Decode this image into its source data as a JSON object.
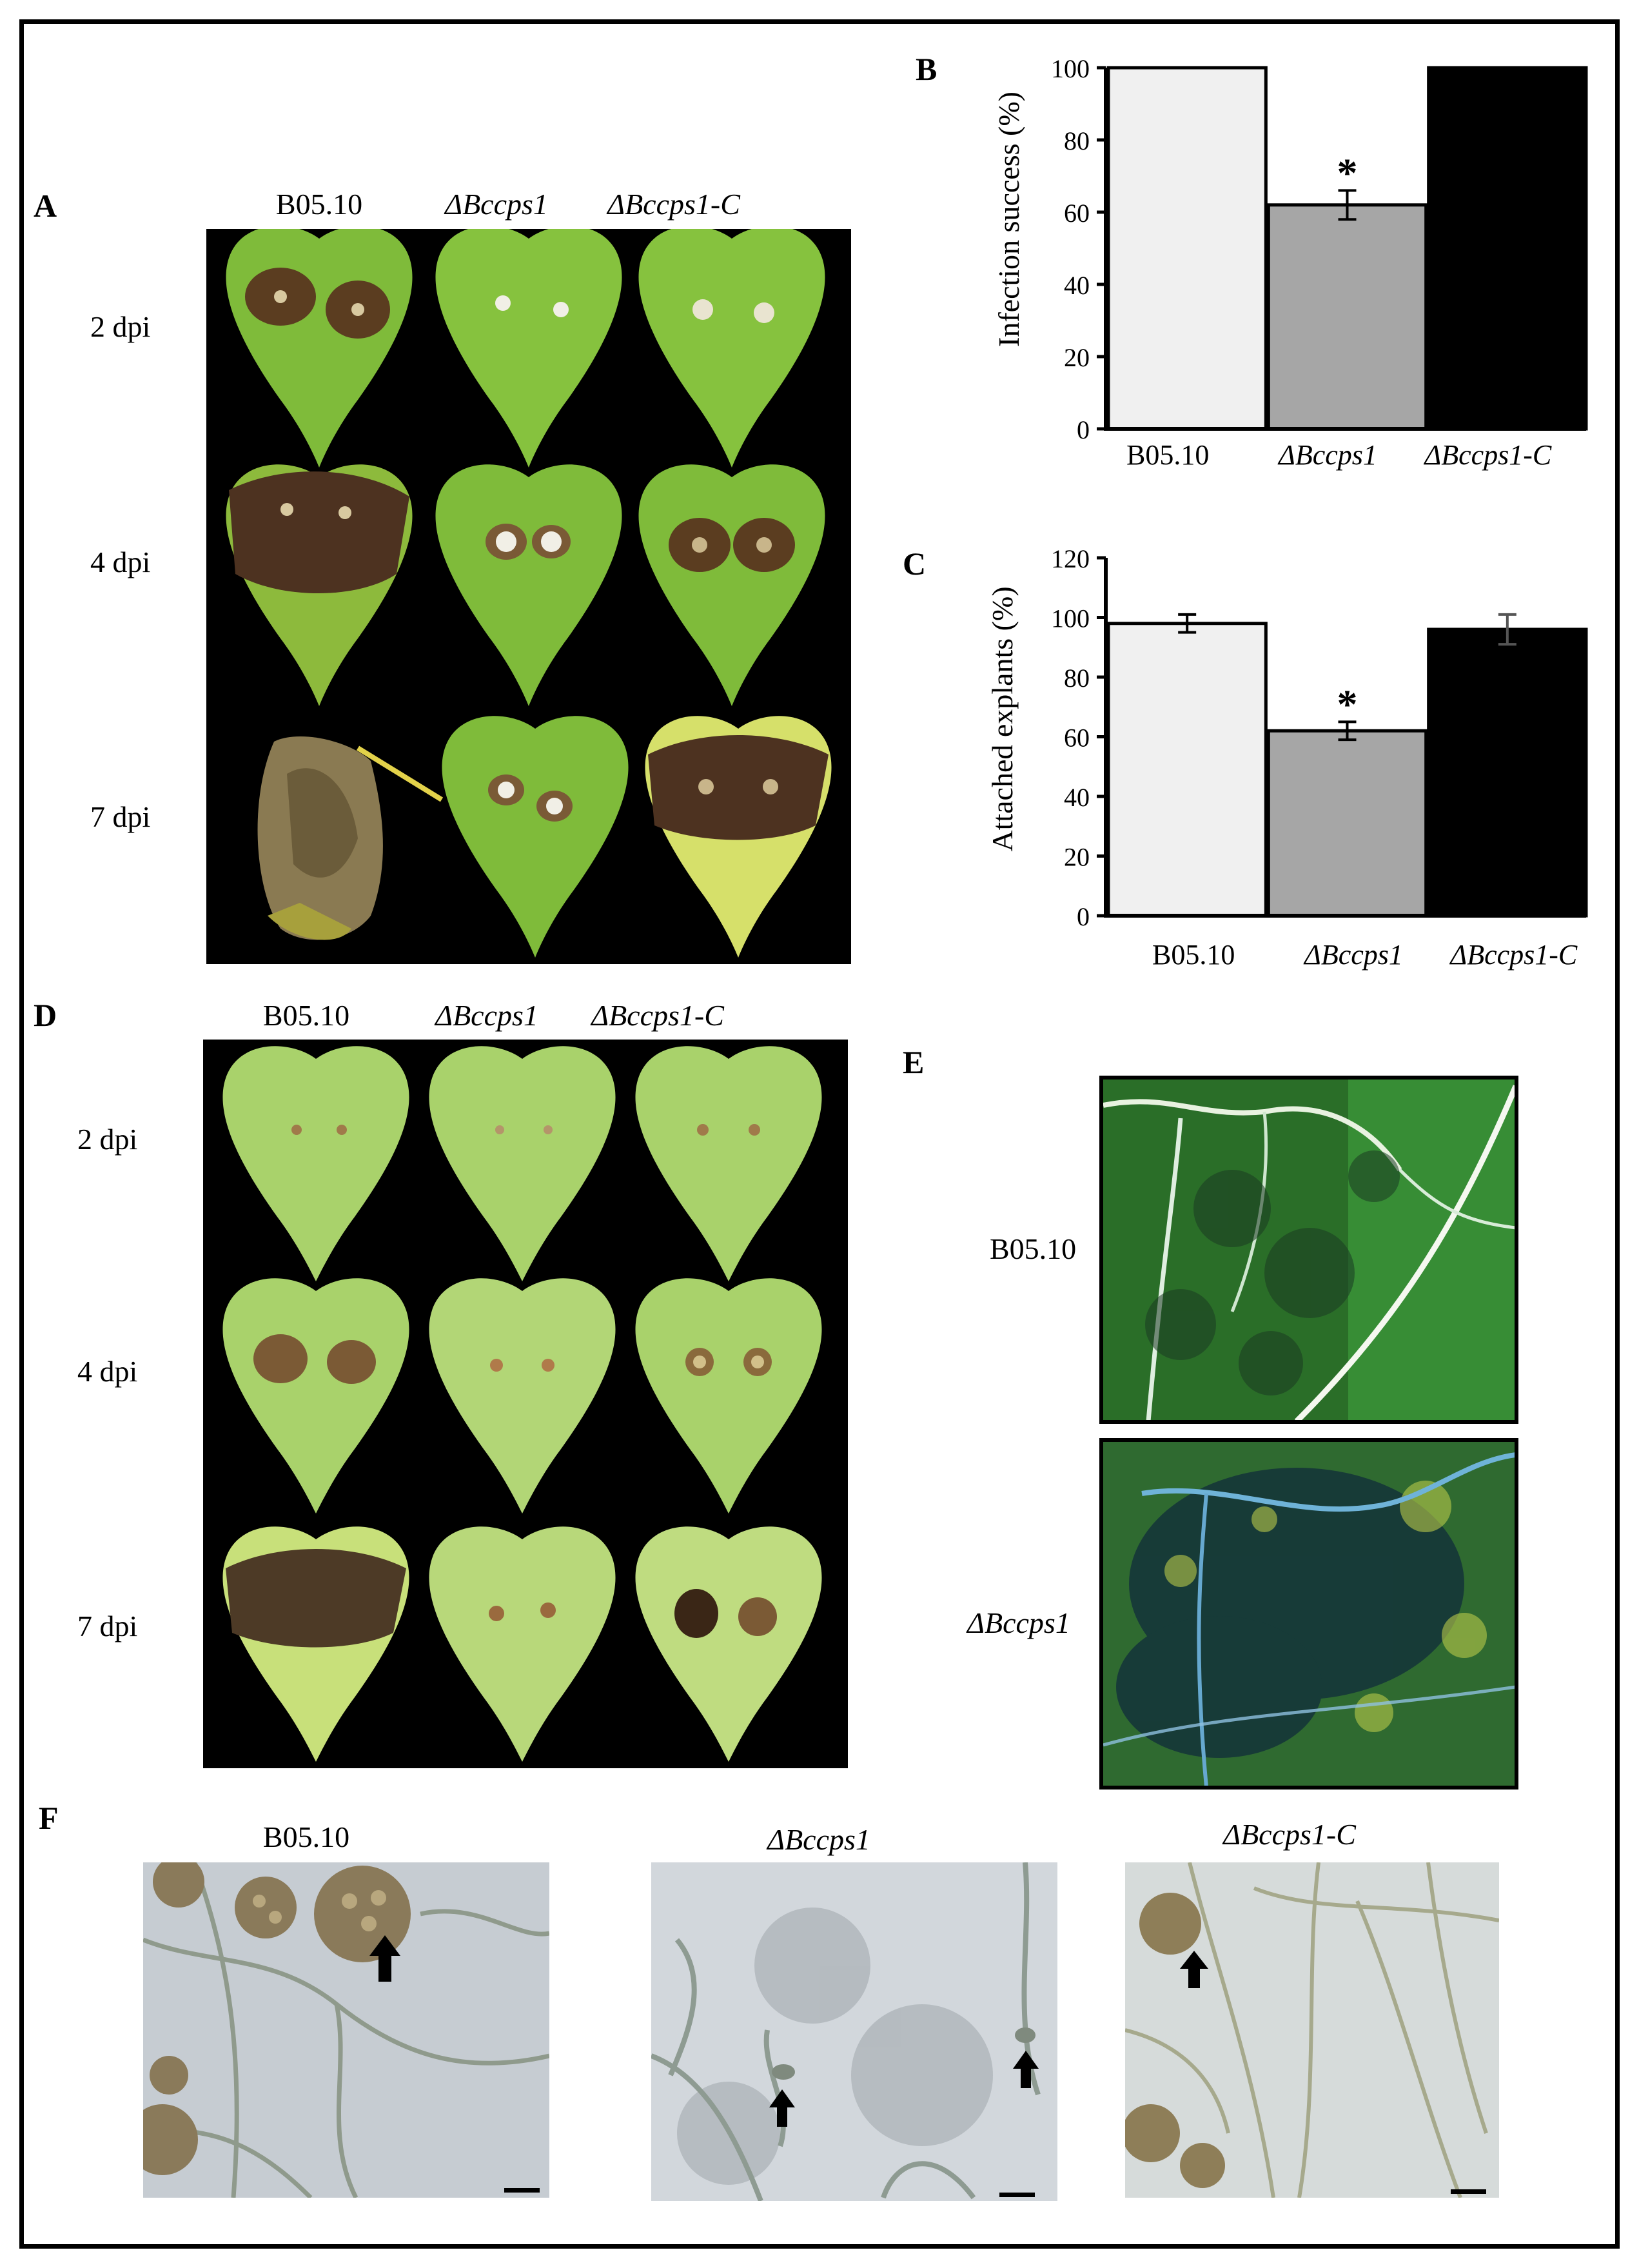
{
  "panels": {
    "A": {
      "label": "A",
      "columns": [
        "B05.10",
        "ΔBccps1",
        "ΔBccps1-C"
      ],
      "rows": [
        "2 dpi",
        "4 dpi",
        "7 dpi"
      ]
    },
    "D": {
      "label": "D",
      "columns": [
        "B05.10",
        "ΔBccps1",
        "ΔBccps1-C"
      ],
      "rows": [
        "2 dpi",
        "4 dpi",
        "7 dpi"
      ]
    },
    "E": {
      "label": "E",
      "rows": [
        "B05.10",
        "ΔBccps1"
      ]
    },
    "F": {
      "label": "F",
      "columns": [
        "B05.10",
        "ΔBccps1",
        "ΔBccps1-C"
      ]
    }
  },
  "chart_data": [
    {
      "panel": "B",
      "type": "bar",
      "title": "",
      "categories": [
        "B05.10",
        "ΔBccps1",
        "ΔBccps1-C"
      ],
      "values": [
        100,
        62,
        100
      ],
      "errors": [
        0,
        4,
        0
      ],
      "significance": [
        "",
        "*",
        ""
      ],
      "colors": [
        "#f0f0f0",
        "#a6a6a6",
        "#000000"
      ],
      "ylabel": "Infection success (%)",
      "ylim": [
        0,
        100
      ],
      "yticks": [
        0,
        20,
        40,
        60,
        80,
        100
      ]
    },
    {
      "panel": "C",
      "type": "bar",
      "title": "",
      "categories": [
        "B05.10",
        "ΔBccps1",
        "ΔBccps1-C"
      ],
      "values": [
        98,
        62,
        96
      ],
      "errors": [
        3,
        3,
        5
      ],
      "significance": [
        "",
        "*",
        ""
      ],
      "colors": [
        "#f0f0f0",
        "#a6a6a6",
        "#000000"
      ],
      "ylabel": "Attached explants (%)",
      "ylim": [
        0,
        120
      ],
      "yticks": [
        0,
        20,
        40,
        60,
        80,
        100,
        120
      ]
    }
  ]
}
